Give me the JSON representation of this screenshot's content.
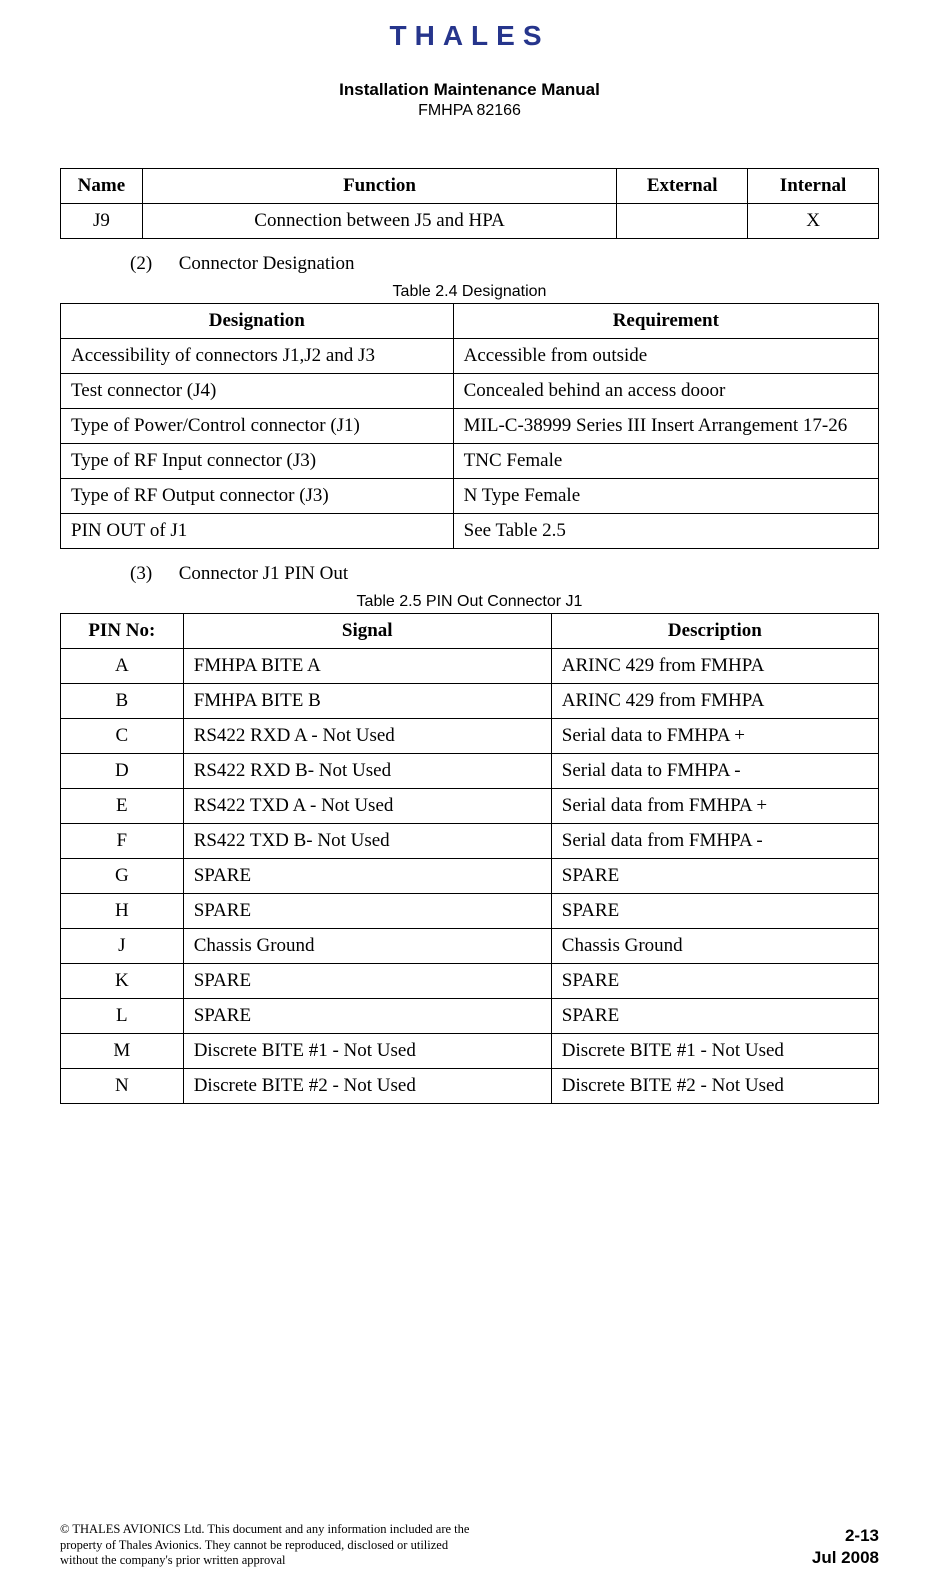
{
  "header": {
    "logo_text": "THALES",
    "title": "Installation Maintenance Manual",
    "subtitle": "FMHPA 82166"
  },
  "table1": {
    "headers": [
      "Name",
      "Function",
      "External",
      "Internal"
    ],
    "rows": [
      {
        "name": "J9",
        "function": "Connection between J5 and HPA",
        "external": "",
        "internal": "X"
      }
    ]
  },
  "section2": {
    "num": "(2)",
    "title": "Connector Designation",
    "caption": "Table 2.4  Designation"
  },
  "table2": {
    "headers": [
      "Designation",
      "Requirement"
    ],
    "rows": [
      [
        "Accessibility of connectors J1,J2 and J3",
        "Accessible from outside"
      ],
      [
        "Test connector (J4)",
        "Concealed behind an access dooor"
      ],
      [
        "Type of Power/Control connector (J1)",
        "MIL-C-38999 Series III Insert Arrangement 17-26"
      ],
      [
        "Type of RF Input connector (J3)",
        "TNC Female"
      ],
      [
        "Type of RF Output connector (J3)",
        "N Type Female"
      ],
      [
        "PIN OUT of J1",
        "See Table 2.5"
      ]
    ]
  },
  "section3": {
    "num": "(3)",
    "title": "Connector J1 PIN Out",
    "caption": "Table 2.5  PIN Out Connector J1"
  },
  "table3": {
    "headers": [
      "PIN No:",
      "Signal",
      "Description"
    ],
    "rows": [
      [
        "A",
        "FMHPA BITE A",
        "ARINC 429 from FMHPA"
      ],
      [
        "B",
        "FMHPA BITE B",
        "ARINC 429 from FMHPA"
      ],
      [
        "C",
        "RS422 RXD A - Not Used",
        "Serial data to FMHPA +"
      ],
      [
        "D",
        "RS422 RXD B- Not Used",
        "Serial data to FMHPA -"
      ],
      [
        "E",
        "RS422 TXD A - Not Used",
        "Serial data from FMHPA +"
      ],
      [
        "F",
        "RS422 TXD B- Not Used",
        "Serial data from FMHPA -"
      ],
      [
        "G",
        "SPARE",
        "SPARE"
      ],
      [
        "H",
        "SPARE",
        "SPARE"
      ],
      [
        "J",
        "Chassis Ground",
        "Chassis Ground"
      ],
      [
        "K",
        "SPARE",
        "SPARE"
      ],
      [
        "L",
        "SPARE",
        "SPARE"
      ],
      [
        "M",
        "Discrete BITE #1 - Not Used",
        "Discrete BITE #1 - Not Used"
      ],
      [
        "N",
        "Discrete BITE #2 - Not Used",
        "Discrete BITE #2 - Not Used"
      ]
    ]
  },
  "footer": {
    "copyright": "© THALES AVIONICS Ltd. This document and any information included are the property of Thales Avionics. They cannot be reproduced, disclosed or utilized without the company's prior written approval",
    "page": "2-13",
    "date": "Jul 2008"
  }
}
